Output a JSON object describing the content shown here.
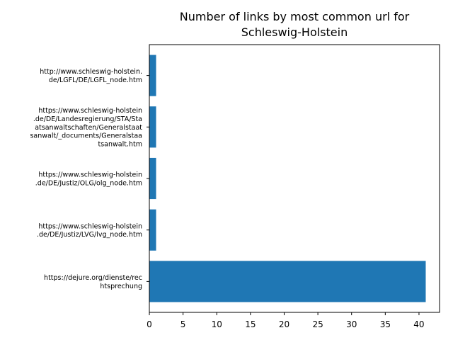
{
  "chart_data": {
    "type": "bar",
    "orientation": "horizontal",
    "title": "Number of links by most common url for\nSchleswig-Holstein",
    "xlabel": "",
    "ylabel": "",
    "categories": [
      "http://www.schleswig-holstein.\nde/LGFL/DE/LGFL_node.htm",
      "https://www.schleswig-holstein\n.de/DE/Landesregierung/STA/Sta\natsanwaltschaften/Generalstaat\nsanwalt/_documents/Generalstaa\ntsanwalt.htm",
      "https://www.schleswig-holstein\n.de/DE/Justiz/OLG/olg_node.htm",
      "https://www.schleswig-holstein\n.de/DE/Justiz/LVG/lvg_node.htm",
      "https://dejure.org/dienste/rec\nhtsprechung"
    ],
    "values": [
      1,
      1,
      1,
      1,
      41
    ],
    "xlim": [
      0,
      43.05
    ],
    "xticks": [
      0,
      5,
      10,
      15,
      20,
      25,
      30,
      35,
      40
    ],
    "bar_color": "#1f77b4",
    "grid": false,
    "legend": "none"
  }
}
